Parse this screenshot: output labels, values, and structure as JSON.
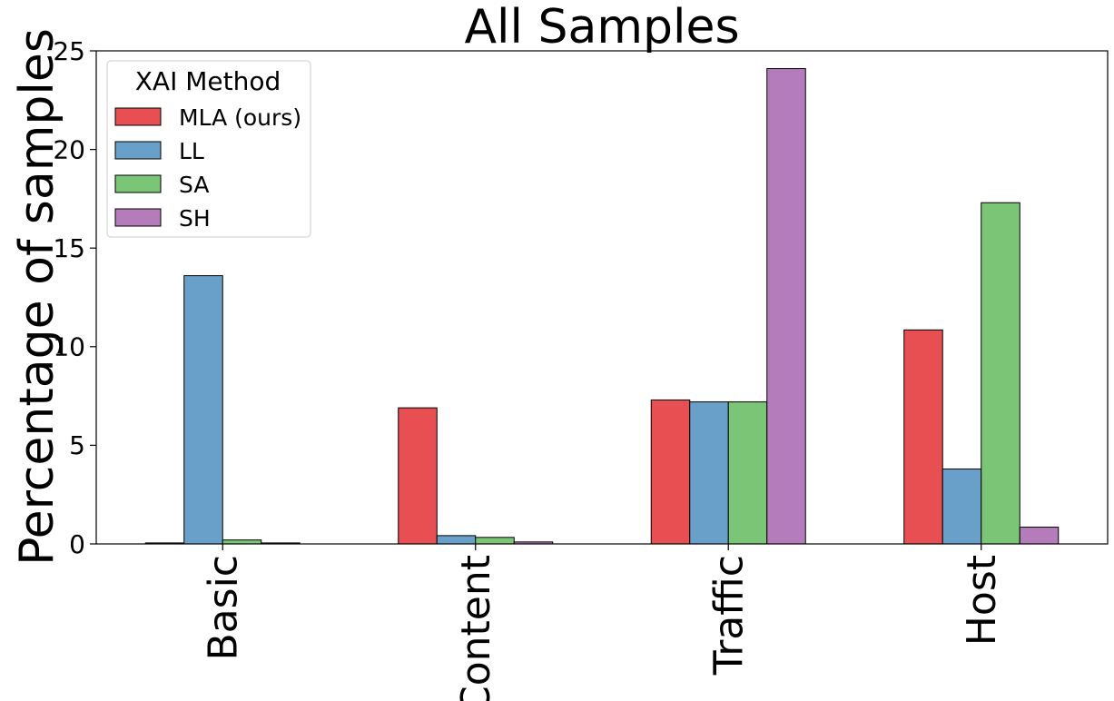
{
  "chart_data": {
    "type": "bar",
    "title": "All Samples",
    "xlabel": "",
    "ylabel": "Percentage of samples",
    "categories": [
      "Basic",
      "Content",
      "Traffic",
      "Host"
    ],
    "ylim": [
      0,
      25
    ],
    "yticks": [
      "0",
      "5",
      "10",
      "15",
      "20",
      "25"
    ],
    "grid": false,
    "legend": {
      "title": "XAI Method",
      "placement": "top-left"
    },
    "series": [
      {
        "name": "MLA (ours)",
        "color": "#e84f53",
        "values": [
          0.05,
          6.9,
          7.3,
          10.85
        ]
      },
      {
        "name": "LL",
        "color": "#68a0c9",
        "values": [
          13.6,
          0.42,
          7.2,
          3.8
        ]
      },
      {
        "name": "SA",
        "color": "#7bc576",
        "values": [
          0.2,
          0.33,
          7.2,
          17.3
        ]
      },
      {
        "name": "SH",
        "color": "#b47cbb",
        "values": [
          0.05,
          0.1,
          24.1,
          0.85
        ]
      }
    ]
  }
}
